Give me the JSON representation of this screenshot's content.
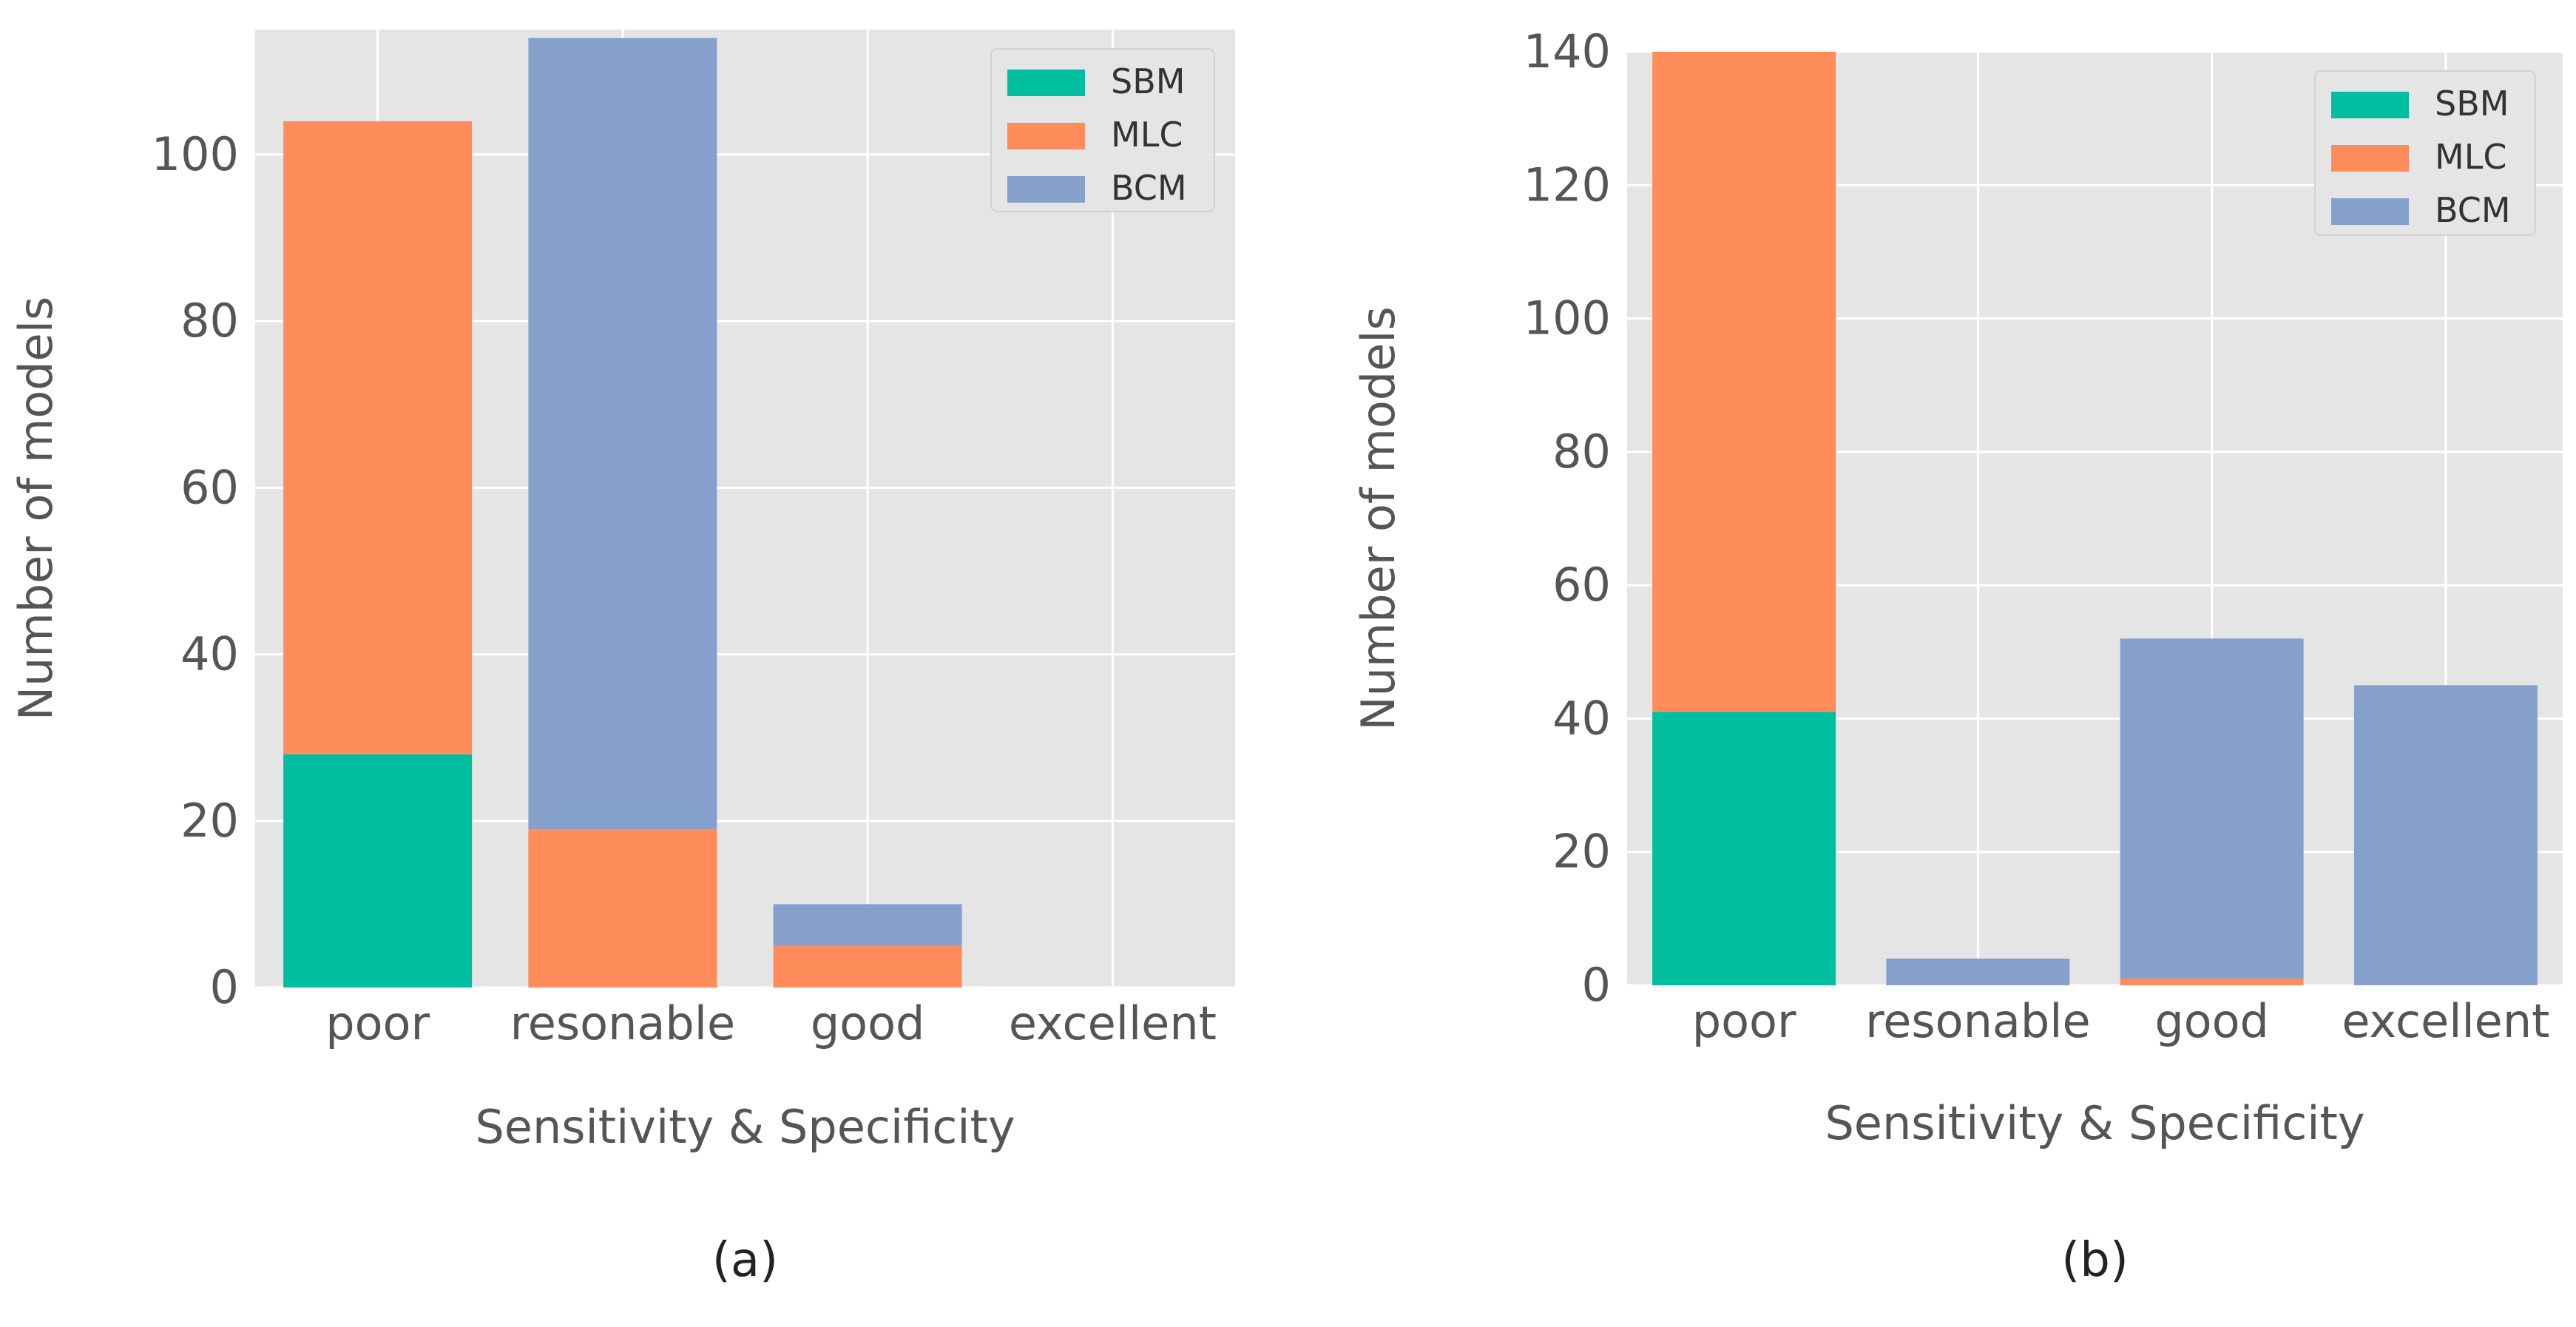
{
  "colors": {
    "SBM": "#00bfa0",
    "MLC": "#ff8c5a",
    "BCM": "#86a0cc",
    "panel_bg": "#e5e5e5",
    "grid": "#ffffff"
  },
  "chart_data": [
    {
      "type": "bar",
      "stacked": true,
      "caption": "(a)",
      "xlabel": "Sensitivity & Specificity",
      "ylabel": "Number of models",
      "categories": [
        "poor",
        "resonable",
        "good",
        "excellent"
      ],
      "ylim": [
        0,
        115
      ],
      "yticks": [
        0,
        20,
        40,
        60,
        80,
        100
      ],
      "legend": {
        "position": "top-right",
        "entries": [
          "SBM",
          "MLC",
          "BCM"
        ]
      },
      "series": [
        {
          "name": "SBM",
          "values": [
            28,
            0,
            0,
            0
          ]
        },
        {
          "name": "MLC",
          "values": [
            76,
            19,
            5,
            0
          ]
        },
        {
          "name": "BCM",
          "values": [
            0,
            95,
            5,
            0
          ]
        }
      ]
    },
    {
      "type": "bar",
      "stacked": true,
      "caption": "(b)",
      "xlabel": "Sensitivity & Specificity",
      "ylabel": "Number of models",
      "categories": [
        "poor",
        "resonable",
        "good",
        "excellent"
      ],
      "ylim": [
        0,
        140
      ],
      "yticks": [
        0,
        20,
        40,
        60,
        80,
        100,
        120,
        140
      ],
      "legend": {
        "position": "top-right",
        "entries": [
          "SBM",
          "MLC",
          "BCM"
        ]
      },
      "series": [
        {
          "name": "SBM",
          "values": [
            41,
            0,
            0,
            0
          ]
        },
        {
          "name": "MLC",
          "values": [
            99,
            0,
            1,
            0
          ]
        },
        {
          "name": "BCM",
          "values": [
            0,
            4,
            51,
            45
          ]
        }
      ]
    }
  ]
}
